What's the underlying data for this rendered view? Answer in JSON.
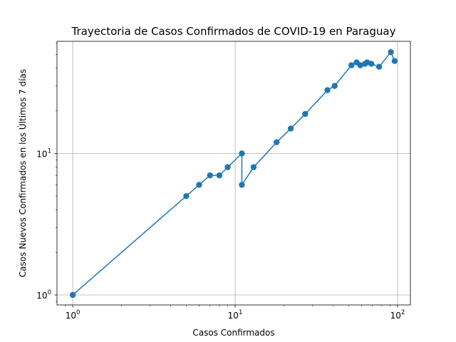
{
  "chart_data": {
    "type": "line",
    "title": "Trayectoria de Casos Confirmados de COVID-19 en Paraguay",
    "xlabel": "Casos Confirmados",
    "ylabel": "Casos Nuevos Confirmados en los Últimos 7 días",
    "xscale": "log",
    "yscale": "log",
    "xlim": [
      0.8,
      120
    ],
    "ylim": [
      0.85,
      62
    ],
    "grid": true,
    "x_ticks": [
      {
        "value": 1,
        "base": "10",
        "exp": "0"
      },
      {
        "value": 10,
        "base": "10",
        "exp": "1"
      },
      {
        "value": 100,
        "base": "10",
        "exp": "2"
      }
    ],
    "y_ticks": [
      {
        "value": 1,
        "base": "10",
        "exp": "0"
      },
      {
        "value": 10,
        "base": "10",
        "exp": "1"
      }
    ],
    "series": [
      {
        "color": "#1f77b4",
        "marker": "circle",
        "points": [
          [
            1,
            1
          ],
          [
            5,
            5
          ],
          [
            6,
            6
          ],
          [
            7,
            7
          ],
          [
            8,
            7
          ],
          [
            9,
            8
          ],
          [
            11,
            10
          ],
          [
            11,
            6
          ],
          [
            13,
            8
          ],
          [
            18,
            12
          ],
          [
            22,
            15
          ],
          [
            27,
            19
          ],
          [
            37,
            28
          ],
          [
            41,
            30
          ],
          [
            52,
            42
          ],
          [
            56,
            44
          ],
          [
            59,
            42
          ],
          [
            63,
            43
          ],
          [
            65,
            44
          ],
          [
            69,
            43
          ],
          [
            77,
            41
          ],
          [
            91,
            52
          ],
          [
            96,
            45
          ]
        ]
      }
    ]
  }
}
